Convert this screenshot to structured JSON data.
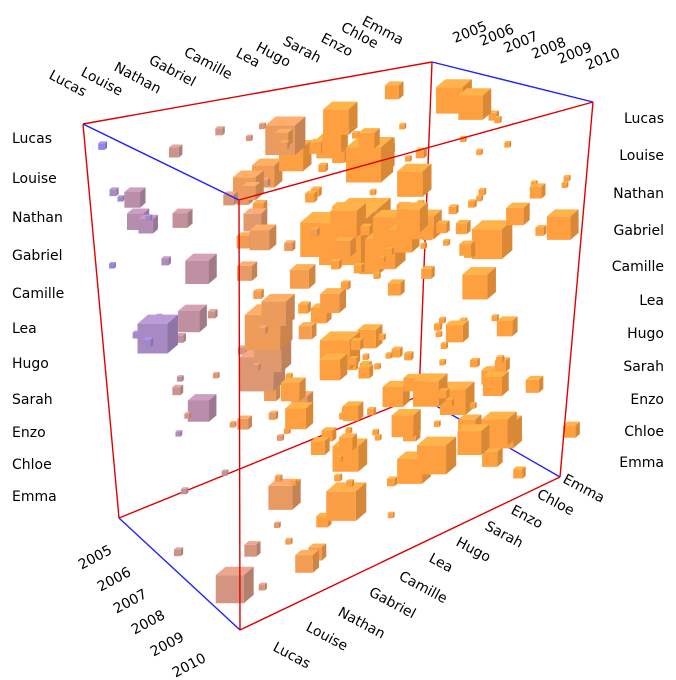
{
  "chart_data": {
    "type": "3d-box",
    "title": "",
    "names": [
      "Lucas",
      "Louise",
      "Nathan",
      "Gabriel",
      "Camille",
      "Lea",
      "Hugo",
      "Sarah",
      "Enzo",
      "Chloe",
      "Emma"
    ],
    "years": [
      "2005",
      "2006",
      "2007",
      "2008",
      "2009",
      "2010"
    ],
    "axis_colors": {
      "red": "#e00000",
      "blue": "#2020ff"
    },
    "cube_color_range": [
      "#8080ff",
      "#ffa040"
    ],
    "grid": false,
    "legend": "none",
    "left_labels": [
      "Lucas",
      "Louise",
      "Nathan",
      "Gabriel",
      "Camille",
      "Lea",
      "Hugo",
      "Sarah",
      "Enzo",
      "Chloe",
      "Emma"
    ],
    "right_labels": [
      "Lucas",
      "Louise",
      "Nathan",
      "Gabriel",
      "Camille",
      "Lea",
      "Hugo",
      "Sarah",
      "Enzo",
      "Chloe",
      "Emma"
    ],
    "top_names": [
      "Lucas",
      "Louise",
      "Nathan",
      "Gabriel",
      "Camille",
      "Lea",
      "Hugo",
      "Sarah",
      "Enzo",
      "Chloe",
      "Emma"
    ],
    "top_years": [
      "2005",
      "2006",
      "2007",
      "2008",
      "2009",
      "2010"
    ],
    "bottom_years": [
      "2005",
      "2006",
      "2007",
      "2008",
      "2009",
      "2010"
    ],
    "bottom_names": [
      "Lucas",
      "Louise",
      "Nathan",
      "Gabriel",
      "Camille",
      "Lea",
      "Hugo",
      "Sarah",
      "Enzo",
      "Chloe",
      "Emma"
    ]
  }
}
